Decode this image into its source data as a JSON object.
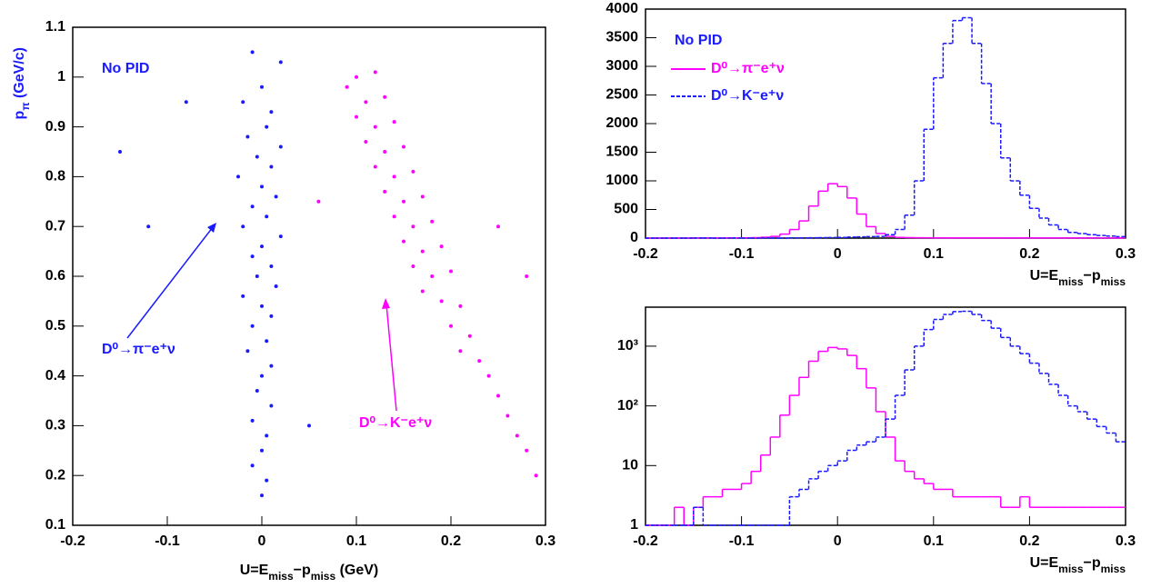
{
  "chart_data": [
    {
      "type": "scatter",
      "x_label": [
        {
          "text": "U=E"
        },
        {
          "text": "miss",
          "sub": true
        },
        {
          "text": "−p"
        },
        {
          "text": "miss",
          "sub": true
        },
        {
          "text": " (GeV)"
        }
      ],
      "y_label": [
        {
          "text": "p"
        },
        {
          "text": "π",
          "sub": true
        },
        {
          "text": " (GeV/c)"
        }
      ],
      "annotations": [
        "No PID",
        "D⁰→π⁻e⁺ν",
        "D⁰→K⁻e⁺ν"
      ],
      "xlim": [
        -0.2,
        0.3
      ],
      "xticks": [
        -0.2,
        -0.1,
        0,
        0.1,
        0.2,
        0.3
      ],
      "ylim": [
        0.1,
        1.1
      ],
      "yticks": [
        0.1,
        0.2,
        0.3,
        0.4,
        0.5,
        0.6,
        0.7,
        0.8,
        0.9,
        1,
        1.1
      ],
      "series": [
        {
          "color": "#1a1aff",
          "x": [
            -0.01,
            0.02,
            0,
            -0.02,
            0.01,
            0.005,
            -0.015,
            0.02,
            -0.005,
            0.01,
            -0.025,
            0,
            0.015,
            -0.01,
            0.005,
            -0.02,
            0.02,
            0,
            -0.01,
            0.01,
            -0.005,
            0.015,
            -0.02,
            0,
            0.01,
            -0.01,
            0.005,
            -0.015,
            0.01,
            0,
            -0.005,
            0.01,
            -0.01,
            0.005,
            0,
            -0.01,
            0.005,
            0,
            -0.15,
            -0.12,
            0.05,
            -0.08
          ],
          "values": [
            1.05,
            1.03,
            0.98,
            0.95,
            0.93,
            0.9,
            0.88,
            0.86,
            0.84,
            0.82,
            0.8,
            0.78,
            0.76,
            0.74,
            0.72,
            0.7,
            0.68,
            0.66,
            0.64,
            0.62,
            0.6,
            0.58,
            0.56,
            0.54,
            0.52,
            0.5,
            0.47,
            0.45,
            0.42,
            0.4,
            0.37,
            0.34,
            0.31,
            0.28,
            0.25,
            0.22,
            0.19,
            0.16,
            0.85,
            0.7,
            0.3,
            0.95
          ]
        },
        {
          "color": "#ff00ff",
          "x": [
            0.1,
            0.12,
            0.09,
            0.11,
            0.13,
            0.1,
            0.12,
            0.14,
            0.11,
            0.13,
            0.15,
            0.12,
            0.14,
            0.16,
            0.13,
            0.15,
            0.17,
            0.14,
            0.16,
            0.18,
            0.15,
            0.17,
            0.19,
            0.16,
            0.18,
            0.2,
            0.17,
            0.19,
            0.21,
            0.2,
            0.22,
            0.21,
            0.23,
            0.24,
            0.25,
            0.26,
            0.27,
            0.28,
            0.29,
            0.25,
            0.28,
            0.06
          ],
          "values": [
            1.0,
            1.01,
            0.98,
            0.95,
            0.96,
            0.92,
            0.9,
            0.91,
            0.87,
            0.85,
            0.86,
            0.82,
            0.8,
            0.81,
            0.77,
            0.75,
            0.76,
            0.72,
            0.7,
            0.71,
            0.67,
            0.65,
            0.66,
            0.62,
            0.6,
            0.61,
            0.57,
            0.55,
            0.54,
            0.5,
            0.48,
            0.45,
            0.43,
            0.4,
            0.36,
            0.32,
            0.28,
            0.25,
            0.2,
            0.7,
            0.6,
            0.75
          ]
        }
      ]
    },
    {
      "type": "histogram",
      "x_label": [
        {
          "text": "U=E"
        },
        {
          "text": "miss",
          "sub": true
        },
        {
          "text": "−p"
        },
        {
          "text": "miss",
          "sub": true
        }
      ],
      "annotations": [
        "No PID"
      ],
      "legend": "upper-left",
      "xlim": [
        -0.2,
        0.3
      ],
      "xticks": [
        -0.2,
        -0.1,
        0,
        0.1,
        0.2,
        0.3
      ],
      "ylim": [
        0,
        4000
      ],
      "yticks": [
        0,
        500,
        1000,
        1500,
        2000,
        2500,
        3000,
        3500,
        4000
      ],
      "bins": [
        -0.2,
        -0.19,
        -0.18,
        -0.17,
        -0.16,
        -0.15,
        -0.14,
        -0.13,
        -0.12,
        -0.11,
        -0.1,
        -0.09,
        -0.08,
        -0.07,
        -0.06,
        -0.05,
        -0.04,
        -0.03,
        -0.02,
        -0.01,
        0,
        0.01,
        0.02,
        0.03,
        0.04,
        0.05,
        0.06,
        0.07,
        0.08,
        0.09,
        0.1,
        0.11,
        0.12,
        0.13,
        0.14,
        0.15,
        0.16,
        0.17,
        0.18,
        0.19,
        0.2,
        0.21,
        0.22,
        0.23,
        0.24,
        0.25,
        0.26,
        0.27,
        0.28,
        0.29,
        0.3
      ],
      "series": [
        {
          "name": "D⁰→π⁻e⁺ν",
          "color": "#ff00ff",
          "dashed": false,
          "values": [
            0,
            0,
            0,
            2,
            1,
            2,
            3,
            3,
            4,
            4,
            5,
            8,
            15,
            30,
            70,
            150,
            300,
            560,
            820,
            950,
            900,
            700,
            420,
            200,
            80,
            30,
            12,
            8,
            6,
            5,
            4,
            4,
            3,
            3,
            3,
            3,
            3,
            2,
            2,
            3,
            2,
            2,
            2,
            2,
            2,
            2,
            2,
            2,
            2,
            2
          ]
        },
        {
          "name": "D⁰→K⁻e⁺ν",
          "color": "#1a1aff",
          "dashed": true,
          "values": [
            0,
            0,
            0,
            0,
            0,
            2,
            1,
            0,
            0,
            1,
            0,
            0,
            1,
            0,
            0,
            3,
            4,
            6,
            8,
            10,
            12,
            18,
            22,
            25,
            30,
            60,
            150,
            400,
            1000,
            1900,
            2800,
            3400,
            3800,
            3850,
            3400,
            2700,
            2000,
            1400,
            1000,
            750,
            520,
            350,
            230,
            150,
            100,
            80,
            60,
            45,
            35,
            25
          ]
        }
      ]
    },
    {
      "type": "histogram",
      "log_scale": true,
      "x_label": [
        {
          "text": "U=E"
        },
        {
          "text": "miss",
          "sub": true
        },
        {
          "text": "−p"
        },
        {
          "text": "miss",
          "sub": true
        }
      ],
      "xlim": [
        -0.2,
        0.3
      ],
      "xticks": [
        -0.2,
        -0.1,
        0,
        0.1,
        0.2,
        0.3
      ],
      "ylim": [
        1,
        4500
      ],
      "yticks": [
        1,
        10,
        {
          "value": 100,
          "label": "10²"
        },
        {
          "value": 1000,
          "label": "10³"
        }
      ],
      "bins": [
        -0.2,
        -0.19,
        -0.18,
        -0.17,
        -0.16,
        -0.15,
        -0.14,
        -0.13,
        -0.12,
        -0.11,
        -0.1,
        -0.09,
        -0.08,
        -0.07,
        -0.06,
        -0.05,
        -0.04,
        -0.03,
        -0.02,
        -0.01,
        0,
        0.01,
        0.02,
        0.03,
        0.04,
        0.05,
        0.06,
        0.07,
        0.08,
        0.09,
        0.1,
        0.11,
        0.12,
        0.13,
        0.14,
        0.15,
        0.16,
        0.17,
        0.18,
        0.19,
        0.2,
        0.21,
        0.22,
        0.23,
        0.24,
        0.25,
        0.26,
        0.27,
        0.28,
        0.29,
        0.3
      ],
      "series": [
        {
          "color": "#ff00ff",
          "dashed": false,
          "values": [
            0,
            0,
            0,
            2,
            1,
            2,
            3,
            3,
            4,
            4,
            5,
            8,
            15,
            30,
            70,
            150,
            300,
            560,
            820,
            950,
            900,
            700,
            420,
            200,
            80,
            30,
            12,
            8,
            6,
            5,
            4,
            4,
            3,
            3,
            3,
            3,
            3,
            2,
            2,
            3,
            2,
            2,
            2,
            2,
            2,
            2,
            2,
            2,
            2,
            2
          ]
        },
        {
          "color": "#1a1aff",
          "dashed": true,
          "values": [
            0,
            0,
            0,
            0,
            0,
            2,
            1,
            0,
            0,
            1,
            0,
            0,
            1,
            0,
            0,
            3,
            4,
            6,
            8,
            10,
            12,
            18,
            22,
            25,
            30,
            60,
            150,
            400,
            1000,
            1900,
            2800,
            3400,
            3800,
            3850,
            3400,
            2700,
            2000,
            1400,
            1000,
            750,
            520,
            350,
            230,
            150,
            100,
            80,
            60,
            45,
            35,
            25
          ]
        }
      ]
    }
  ]
}
